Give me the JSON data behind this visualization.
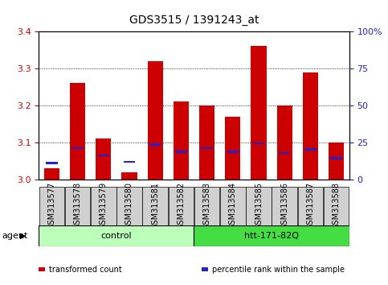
{
  "title": "GDS3515 / 1391243_at",
  "samples": [
    "GSM313577",
    "GSM313578",
    "GSM313579",
    "GSM313580",
    "GSM313581",
    "GSM313582",
    "GSM313583",
    "GSM313584",
    "GSM313585",
    "GSM313586",
    "GSM313587",
    "GSM313588"
  ],
  "transformed_count": [
    3.03,
    3.26,
    3.11,
    3.02,
    3.32,
    3.21,
    3.2,
    3.17,
    3.36,
    3.2,
    3.29,
    3.1
  ],
  "percentile_rank": [
    3.045,
    3.085,
    3.065,
    3.048,
    3.095,
    3.075,
    3.085,
    3.075,
    3.098,
    3.072,
    3.082,
    3.058
  ],
  "ymin": 3.0,
  "ymax": 3.4,
  "yticks_left": [
    3.0,
    3.1,
    3.2,
    3.3,
    3.4
  ],
  "yticks_right": [
    0,
    25,
    50,
    75,
    100
  ],
  "bar_color": "#cc0000",
  "percentile_color": "#2222cc",
  "groups": [
    {
      "label": "control",
      "start": 0,
      "end": 5,
      "color": "#bbffbb"
    },
    {
      "label": "htt-171-82Q",
      "start": 6,
      "end": 11,
      "color": "#44dd44"
    }
  ],
  "agent_label": "agent",
  "legend_items": [
    {
      "label": "transformed count",
      "color": "#cc0000"
    },
    {
      "label": "percentile rank within the sample",
      "color": "#2222cc"
    }
  ],
  "bar_width": 0.6,
  "background_color": "#ffffff",
  "title_fontsize": 10,
  "tick_label_fontsize": 7,
  "axis_label_color_left": "#cc0000",
  "axis_label_color_right": "#2222cc",
  "tickbox_color": "#d0d0d0"
}
